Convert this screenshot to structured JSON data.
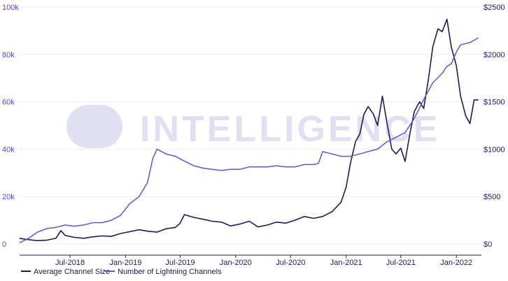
{
  "chart_data": {
    "type": "line",
    "title": "",
    "watermark": "INTELLIGENCE",
    "x_ticks": [
      "Jul-2018",
      "Jan-2019",
      "Jul-2019",
      "Jan-2020",
      "Jul-2020",
      "Jan-2021",
      "Jul-2021",
      "Jan-2022"
    ],
    "y_left": {
      "ticks": [
        "0",
        "20k",
        "40k",
        "60k",
        "80k",
        "100k"
      ],
      "range": [
        0,
        100000
      ],
      "color": "#5b4ac9"
    },
    "y_right": {
      "ticks": [
        "$0",
        "$500",
        "$1000",
        "$1500",
        "$2000",
        "$2500"
      ],
      "range": [
        0,
        2500
      ],
      "color": "#1b1b5e"
    },
    "x_range": [
      "2018-01-15",
      "2022-03-25"
    ],
    "grid": true,
    "legend_position": "bottom-left",
    "series": [
      {
        "name": "Average Channel Size",
        "axis": "right",
        "color": "#1b1b5e",
        "x": [
          "2018-01-15",
          "2018-02-15",
          "2018-03-15",
          "2018-04-15",
          "2018-05-15",
          "2018-06-01",
          "2018-06-15",
          "2018-07-15",
          "2018-08-15",
          "2018-09-15",
          "2018-10-15",
          "2018-11-15",
          "2018-12-15",
          "2019-01-15",
          "2019-02-15",
          "2019-03-15",
          "2019-04-15",
          "2019-05-15",
          "2019-06-15",
          "2019-07-01",
          "2019-07-15",
          "2019-08-15",
          "2019-09-15",
          "2019-10-15",
          "2019-11-15",
          "2019-12-15",
          "2020-01-15",
          "2020-02-15",
          "2020-03-15",
          "2020-04-15",
          "2020-05-15",
          "2020-06-15",
          "2020-07-15",
          "2020-08-15",
          "2020-09-15",
          "2020-10-15",
          "2020-11-15",
          "2020-12-15",
          "2021-01-01",
          "2021-01-15",
          "2021-02-01",
          "2021-02-15",
          "2021-03-01",
          "2021-03-15",
          "2021-04-01",
          "2021-04-15",
          "2021-05-01",
          "2021-05-15",
          "2021-06-01",
          "2021-06-15",
          "2021-07-01",
          "2021-07-15",
          "2021-08-01",
          "2021-08-15",
          "2021-09-01",
          "2021-09-15",
          "2021-10-01",
          "2021-10-15",
          "2021-11-01",
          "2021-11-15",
          "2021-12-01",
          "2021-12-15",
          "2022-01-01",
          "2022-01-15",
          "2022-02-01",
          "2022-02-15",
          "2022-03-01",
          "2022-03-15"
        ],
        "values": [
          60,
          45,
          35,
          40,
          60,
          140,
          90,
          70,
          60,
          75,
          85,
          80,
          110,
          130,
          150,
          135,
          125,
          160,
          175,
          220,
          310,
          280,
          260,
          240,
          230,
          190,
          210,
          240,
          180,
          200,
          230,
          220,
          250,
          290,
          270,
          290,
          340,
          440,
          600,
          850,
          1080,
          1160,
          1370,
          1450,
          1370,
          1250,
          1560,
          1300,
          1000,
          950,
          1010,
          870,
          1180,
          1400,
          1500,
          1430,
          1750,
          2080,
          2270,
          2240,
          2370,
          2080,
          1880,
          1560,
          1350,
          1270,
          1520,
          1520
        ]
      },
      {
        "name": "Number of Lightning Channels",
        "axis": "left",
        "color": "#6a4fd9",
        "x": [
          "2018-01-15",
          "2018-02-15",
          "2018-03-15",
          "2018-04-15",
          "2018-05-15",
          "2018-06-15",
          "2018-07-15",
          "2018-08-15",
          "2018-09-15",
          "2018-10-15",
          "2018-11-15",
          "2018-12-15",
          "2019-01-15",
          "2019-02-15",
          "2019-03-15",
          "2019-04-01",
          "2019-04-15",
          "2019-05-01",
          "2019-05-15",
          "2019-06-15",
          "2019-07-15",
          "2019-08-15",
          "2019-09-15",
          "2019-10-15",
          "2019-11-15",
          "2019-12-15",
          "2020-01-15",
          "2020-02-15",
          "2020-03-15",
          "2020-04-15",
          "2020-05-15",
          "2020-06-15",
          "2020-07-15",
          "2020-08-15",
          "2020-09-15",
          "2020-10-01",
          "2020-10-15",
          "2020-11-15",
          "2020-12-15",
          "2021-01-15",
          "2021-02-15",
          "2021-03-15",
          "2021-04-15",
          "2021-05-15",
          "2021-06-15",
          "2021-07-15",
          "2021-08-15",
          "2021-09-15",
          "2021-10-15",
          "2021-11-15",
          "2021-12-01",
          "2021-12-15",
          "2022-01-01",
          "2022-01-15",
          "2022-02-15",
          "2022-03-15"
        ],
        "values": [
          500,
          2500,
          5000,
          6500,
          7000,
          8000,
          7500,
          8000,
          9000,
          9000,
          10000,
          12000,
          17000,
          20000,
          26000,
          36000,
          40000,
          39000,
          38000,
          37000,
          35000,
          33000,
          32000,
          31500,
          31000,
          31500,
          31500,
          32500,
          32500,
          32500,
          33000,
          32500,
          32500,
          33500,
          33500,
          34000,
          39000,
          38000,
          37000,
          37000,
          38000,
          39000,
          40000,
          43000,
          45000,
          47000,
          53000,
          61000,
          68000,
          72000,
          75000,
          76000,
          81000,
          84000,
          85000,
          87000
        ]
      }
    ]
  }
}
